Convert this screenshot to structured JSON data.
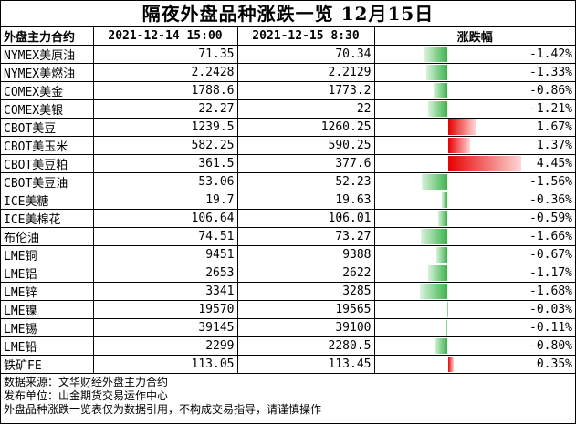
{
  "title": "隔夜外盘品种涨跌一览  12月15日",
  "headers": {
    "name": "外盘主力合约",
    "prev": "2021-12-14 15:00",
    "curr": "2021-12-15  8:30",
    "change": "涨跌幅"
  },
  "colors": {
    "up": "#e60000",
    "down": "#3cb44b"
  },
  "max_abs_change": 4.45,
  "rows": [
    {
      "name": "NYMEX美原油",
      "prev": "71.35",
      "curr": "70.34",
      "change": "-1.42%",
      "value": -1.42
    },
    {
      "name": "NYMEX美燃油",
      "prev": "2.2428",
      "curr": "2.2129",
      "change": "-1.33%",
      "value": -1.33
    },
    {
      "name": "COMEX美金",
      "prev": "1788.6",
      "curr": "1773.2",
      "change": "-0.86%",
      "value": -0.86
    },
    {
      "name": "COMEX美银",
      "prev": "22.27",
      "curr": "22",
      "change": "-1.21%",
      "value": -1.21
    },
    {
      "name": "CBOT美豆",
      "prev": "1239.5",
      "curr": "1260.25",
      "change": "1.67%",
      "value": 1.67
    },
    {
      "name": "CBOT美玉米",
      "prev": "582.25",
      "curr": "590.25",
      "change": "1.37%",
      "value": 1.37
    },
    {
      "name": "CBOT美豆粕",
      "prev": "361.5",
      "curr": "377.6",
      "change": "4.45%",
      "value": 4.45
    },
    {
      "name": "CBOT美豆油",
      "prev": "53.06",
      "curr": "52.23",
      "change": "-1.56%",
      "value": -1.56
    },
    {
      "name": "ICE美糖",
      "prev": "19.7",
      "curr": "19.63",
      "change": "-0.36%",
      "value": -0.36
    },
    {
      "name": "ICE美棉花",
      "prev": "106.64",
      "curr": "106.01",
      "change": "-0.59%",
      "value": -0.59
    },
    {
      "name": "布伦油",
      "prev": "74.51",
      "curr": "73.27",
      "change": "-1.66%",
      "value": -1.66
    },
    {
      "name": "LME铜",
      "prev": "9451",
      "curr": "9388",
      "change": "-0.67%",
      "value": -0.67
    },
    {
      "name": "LME铝",
      "prev": "2653",
      "curr": "2622",
      "change": "-1.17%",
      "value": -1.17
    },
    {
      "name": "LME锌",
      "prev": "3341",
      "curr": "3285",
      "change": "-1.68%",
      "value": -1.68
    },
    {
      "name": "LME镍",
      "prev": "19570",
      "curr": "19565",
      "change": "-0.03%",
      "value": -0.03
    },
    {
      "name": "LME锡",
      "prev": "39145",
      "curr": "39100",
      "change": "-0.11%",
      "value": -0.11
    },
    {
      "name": "LME铅",
      "prev": "2299",
      "curr": "2280.5",
      "change": "-0.80%",
      "value": -0.8
    },
    {
      "name": "铁矿FE",
      "prev": "113.05",
      "curr": "113.45",
      "change": "0.35%",
      "value": 0.35
    }
  ],
  "footer": {
    "source": "数据来源：文华财经外盘主力合约",
    "publisher": "发布单位：山金期货交易运作中心",
    "disclaimer": "外盘品种涨跌一览表仅为数据引用，不构成交易指导，请谨慎操作"
  }
}
